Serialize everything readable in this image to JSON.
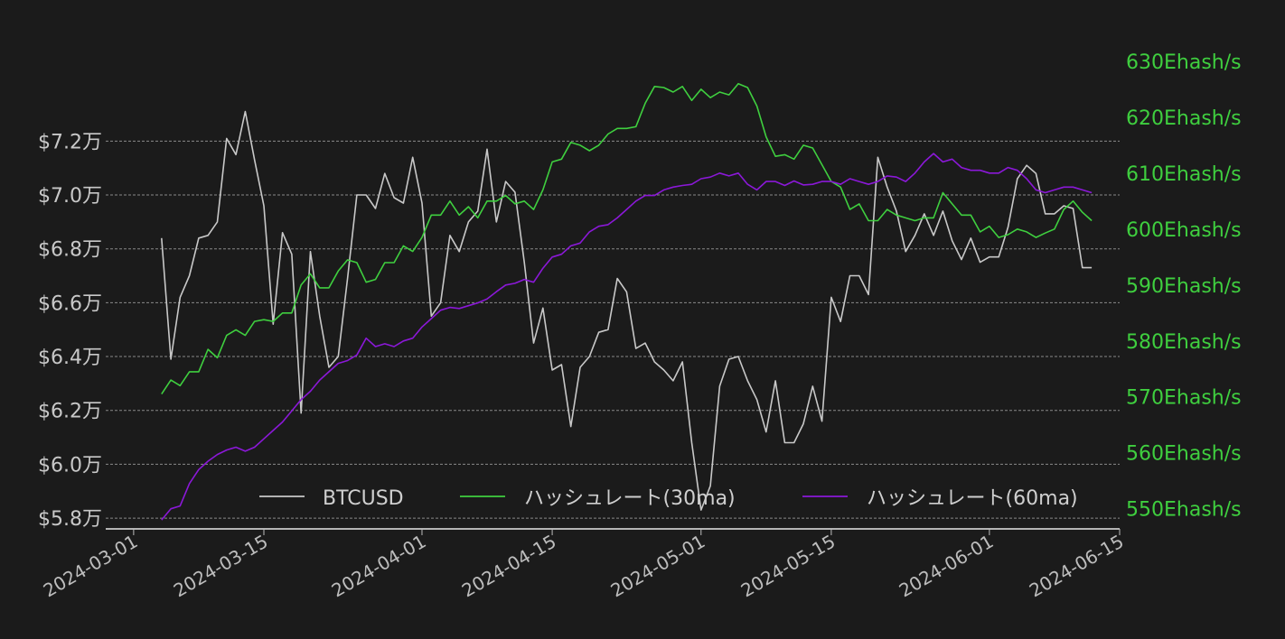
{
  "chart_data": {
    "type": "line",
    "title": "",
    "xlabel": "",
    "ylabel": "",
    "x_range": [
      "2024-02-27",
      "2024-06-15"
    ],
    "x_ticks": [
      "2024-03-01",
      "2024-03-15",
      "2024-04-01",
      "2024-04-15",
      "2024-05-01",
      "2024-05-15",
      "2024-06-01",
      "2024-06-15"
    ],
    "y_left": {
      "range": [
        5.76,
        7.59
      ],
      "ticks": [
        5.8,
        6.0,
        6.2,
        6.4,
        6.6,
        6.8,
        7.0,
        7.2
      ],
      "tick_labels": [
        "$5.8万",
        "$6.0万",
        "$6.2万",
        "$6.4万",
        "$6.6万",
        "$6.8万",
        "$7.0万",
        "$7.2万"
      ]
    },
    "y_right": {
      "range": [
        546.4,
        634.5
      ],
      "ticks": [
        550,
        560,
        570,
        580,
        590,
        600,
        610,
        620,
        630
      ],
      "tick_labels": [
        "550Ehash/s",
        "560Ehash/s",
        "570Ehash/s",
        "580Ehash/s",
        "590Ehash/s",
        "600Ehash/s",
        "610Ehash/s",
        "620Ehash/s",
        "630Ehash/s"
      ]
    },
    "grid": true,
    "legend_position": "bottom-center",
    "series": [
      {
        "name": "BTCUSD",
        "axis": "left",
        "color": "#c8c8c8",
        "start": "2024-03-04",
        "step_days": 1,
        "values": [
          6.84,
          6.39,
          6.62,
          6.7,
          6.84,
          6.85,
          6.9,
          7.21,
          7.15,
          7.31,
          7.13,
          6.96,
          6.52,
          6.86,
          6.78,
          6.19,
          6.79,
          6.55,
          6.36,
          6.4,
          6.69,
          7.0,
          7.0,
          6.95,
          7.08,
          6.99,
          6.97,
          7.14,
          6.97,
          6.55,
          6.6,
          6.85,
          6.79,
          6.9,
          6.94,
          7.17,
          6.9,
          7.05,
          7.01,
          6.75,
          6.45,
          6.58,
          6.35,
          6.37,
          6.14,
          6.36,
          6.4,
          6.49,
          6.5,
          6.69,
          6.64,
          6.43,
          6.45,
          6.38,
          6.35,
          6.31,
          6.38,
          6.08,
          5.83,
          5.92,
          6.29,
          6.39,
          6.4,
          6.31,
          6.24,
          6.12,
          6.31,
          6.08,
          6.08,
          6.15,
          6.29,
          6.16,
          6.62,
          6.53,
          6.7,
          6.7,
          6.63,
          7.14,
          7.03,
          6.94,
          6.79,
          6.85,
          6.93,
          6.85,
          6.94,
          6.83,
          6.76,
          6.84,
          6.75,
          6.77,
          6.77,
          6.88,
          7.06,
          7.11,
          7.08,
          6.93,
          6.93,
          6.96,
          6.95,
          6.73,
          6.73
        ]
      },
      {
        "name": "ハッシュレート(30ma)",
        "axis": "right",
        "color": "#3fcf3f",
        "start": "2024-03-04",
        "step_days": 1,
        "values": [
          570.5,
          573.0,
          572.0,
          574.5,
          574.5,
          578.5,
          577.0,
          581.0,
          582.0,
          581.0,
          583.5,
          583.8,
          583.5,
          585.0,
          585.0,
          590.0,
          592.0,
          589.5,
          589.5,
          592.5,
          594.5,
          594.0,
          590.5,
          591.0,
          594.0,
          594.0,
          597.0,
          596.0,
          598.5,
          602.5,
          602.5,
          605.0,
          602.5,
          604.0,
          602.0,
          605.0,
          605.0,
          606.0,
          604.5,
          605.0,
          603.5,
          607.0,
          612.0,
          612.5,
          615.5,
          615.0,
          614.0,
          615.0,
          617.0,
          618.0,
          618.0,
          618.3,
          622.5,
          625.5,
          625.3,
          624.5,
          625.5,
          623.0,
          625.0,
          623.5,
          624.5,
          624.0,
          626.0,
          625.3,
          622.0,
          616.5,
          613.0,
          613.3,
          612.5,
          615.0,
          614.5,
          611.5,
          608.5,
          607.5,
          603.5,
          604.5,
          601.5,
          601.5,
          603.5,
          602.5,
          602.0,
          601.5,
          602.0,
          602.0,
          606.5,
          604.5,
          602.5,
          602.5,
          599.5,
          600.5,
          598.5,
          599.0,
          600.0,
          599.5,
          598.5,
          599.3,
          600.0,
          603.5,
          605.0,
          603.0,
          601.5
        ]
      },
      {
        "name": "ハッシュレート(60ma)",
        "axis": "right",
        "color": "#8b18d8",
        "start": "2024-03-04",
        "step_days": 1,
        "values": [
          548.0,
          550.0,
          550.5,
          554.5,
          557.0,
          558.5,
          559.7,
          560.5,
          561.0,
          560.3,
          561.0,
          562.5,
          564.0,
          565.5,
          567.5,
          569.5,
          571.0,
          573.0,
          574.5,
          576.0,
          576.5,
          577.5,
          580.5,
          579.0,
          579.5,
          579.0,
          580.0,
          580.5,
          582.5,
          584.0,
          585.5,
          586.0,
          585.8,
          586.3,
          586.8,
          587.5,
          588.8,
          590.0,
          590.3,
          591.0,
          590.5,
          593.0,
          595.0,
          595.5,
          597.0,
          597.5,
          599.5,
          600.5,
          600.8,
          602.0,
          603.5,
          605.0,
          606.0,
          606.0,
          607.0,
          607.5,
          607.8,
          608.0,
          609.0,
          609.3,
          610.0,
          609.5,
          610.0,
          608.0,
          607.0,
          608.5,
          608.5,
          607.8,
          608.6,
          607.9,
          608.0,
          608.5,
          608.5,
          608.0,
          609.0,
          608.5,
          608.0,
          608.5,
          609.5,
          609.3,
          608.5,
          610.0,
          612.0,
          613.5,
          612.0,
          612.5,
          611.0,
          610.5,
          610.5,
          610.0,
          610.0,
          611.0,
          610.5,
          609.0,
          607.0,
          606.5,
          607.0,
          607.5,
          607.5,
          607.0,
          606.5
        ]
      }
    ]
  }
}
